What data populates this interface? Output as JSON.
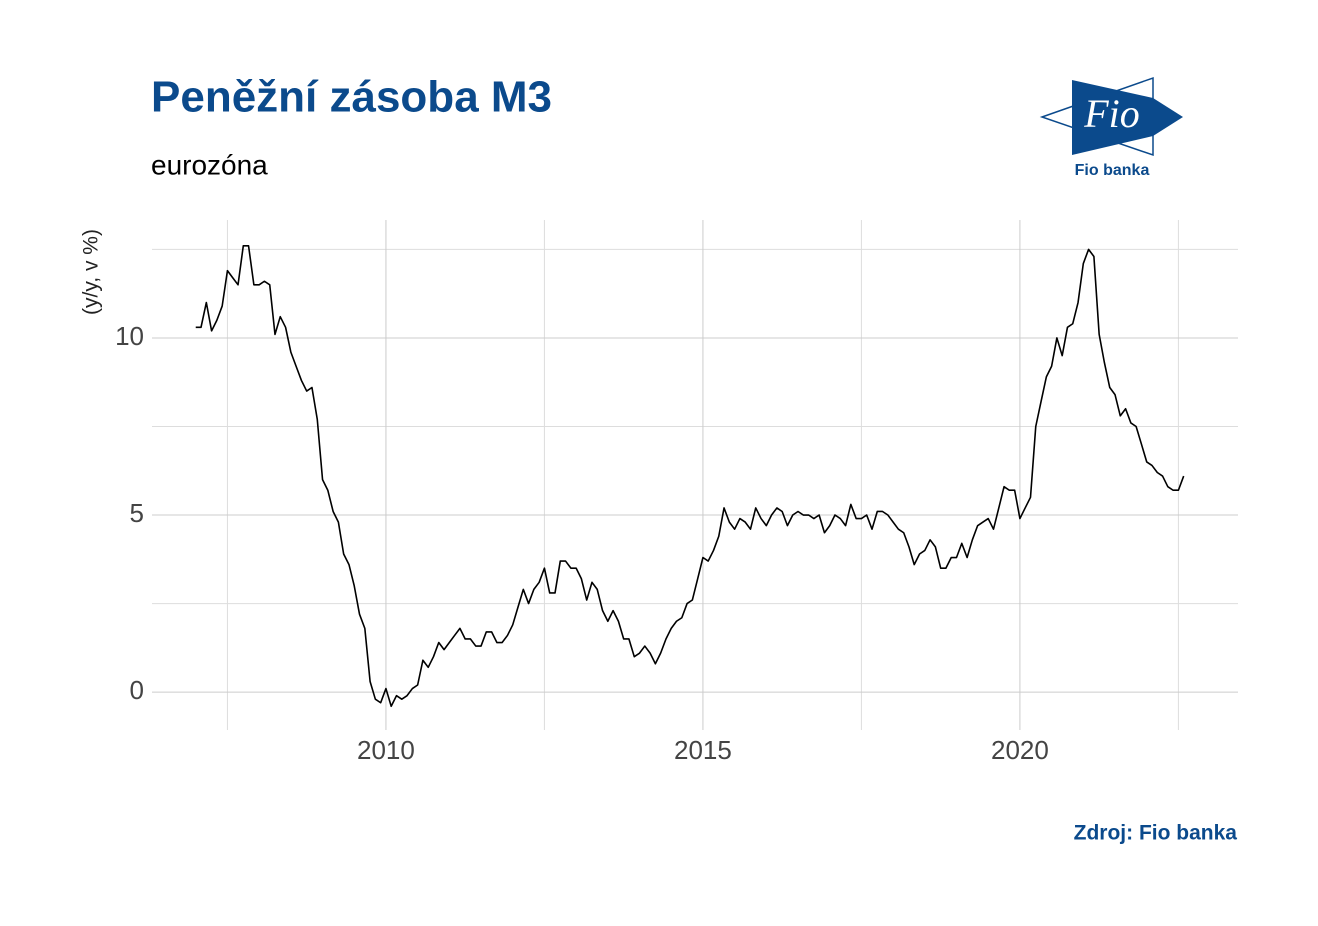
{
  "chart_data": {
    "type": "line",
    "title": "Peněžní zásoba M3",
    "subtitle": "eurozóna",
    "y_label": "(y/y, v %)",
    "source": "Zdroj: Fio banka",
    "logo": {
      "mark": "Fio",
      "name": "Fio banka"
    },
    "grid": true,
    "xlim": [
      2006.31,
      2023.44
    ],
    "ylim": [
      -1.07,
      13.33
    ],
    "xticks": [
      2010,
      2015,
      2020
    ],
    "yticks": [
      0,
      5,
      10
    ],
    "xminorticks": [
      2007.5,
      2012.5,
      2017.5,
      2022.5
    ],
    "yminorticks": [
      2.5,
      7.5,
      12.5
    ],
    "x": [
      2007,
      2007.083,
      2007.167,
      2007.25,
      2007.333,
      2007.417,
      2007.5,
      2007.583,
      2007.667,
      2007.75,
      2007.833,
      2007.917,
      2008,
      2008.083,
      2008.167,
      2008.25,
      2008.333,
      2008.417,
      2008.5,
      2008.583,
      2008.667,
      2008.75,
      2008.833,
      2008.917,
      2009,
      2009.083,
      2009.167,
      2009.25,
      2009.333,
      2009.417,
      2009.5,
      2009.583,
      2009.667,
      2009.75,
      2009.833,
      2009.917,
      2010,
      2010.083,
      2010.167,
      2010.25,
      2010.333,
      2010.417,
      2010.5,
      2010.583,
      2010.667,
      2010.75,
      2010.833,
      2010.917,
      2011,
      2011.083,
      2011.167,
      2011.25,
      2011.333,
      2011.417,
      2011.5,
      2011.583,
      2011.667,
      2011.75,
      2011.833,
      2011.917,
      2012,
      2012.083,
      2012.167,
      2012.25,
      2012.333,
      2012.417,
      2012.5,
      2012.583,
      2012.667,
      2012.75,
      2012.833,
      2012.917,
      2013,
      2013.083,
      2013.167,
      2013.25,
      2013.333,
      2013.417,
      2013.5,
      2013.583,
      2013.667,
      2013.75,
      2013.833,
      2013.917,
      2014,
      2014.083,
      2014.167,
      2014.25,
      2014.333,
      2014.417,
      2014.5,
      2014.583,
      2014.667,
      2014.75,
      2014.833,
      2014.917,
      2015,
      2015.083,
      2015.167,
      2015.25,
      2015.333,
      2015.417,
      2015.5,
      2015.583,
      2015.667,
      2015.75,
      2015.833,
      2015.917,
      2016,
      2016.083,
      2016.167,
      2016.25,
      2016.333,
      2016.417,
      2016.5,
      2016.583,
      2016.667,
      2016.75,
      2016.833,
      2016.917,
      2017,
      2017.083,
      2017.167,
      2017.25,
      2017.333,
      2017.417,
      2017.5,
      2017.583,
      2017.667,
      2017.75,
      2017.833,
      2017.917,
      2018,
      2018.083,
      2018.167,
      2018.25,
      2018.333,
      2018.417,
      2018.5,
      2018.583,
      2018.667,
      2018.75,
      2018.833,
      2018.917,
      2019,
      2019.083,
      2019.167,
      2019.25,
      2019.333,
      2019.417,
      2019.5,
      2019.583,
      2019.667,
      2019.75,
      2019.833,
      2019.917,
      2020,
      2020.083,
      2020.167,
      2020.25,
      2020.333,
      2020.417,
      2020.5,
      2020.583,
      2020.667,
      2020.75,
      2020.833,
      2020.917,
      2021,
      2021.083,
      2021.167,
      2021.25,
      2021.333,
      2021.417,
      2021.5,
      2021.583,
      2021.667,
      2021.75,
      2021.833,
      2021.917,
      2022,
      2022.083,
      2022.167,
      2022.25,
      2022.333,
      2022.417,
      2022.5,
      2022.583
    ],
    "series": [
      {
        "name": "M3",
        "color": "#000000",
        "values": [
          10.3,
          10.3,
          11.0,
          10.2,
          10.5,
          10.9,
          11.9,
          11.7,
          11.5,
          12.6,
          12.6,
          11.5,
          11.5,
          11.6,
          11.5,
          10.1,
          10.6,
          10.3,
          9.6,
          9.2,
          8.8,
          8.5,
          8.6,
          7.7,
          6.0,
          5.7,
          5.1,
          4.8,
          3.9,
          3.6,
          3.0,
          2.2,
          1.8,
          0.3,
          -0.2,
          -0.3,
          0.1,
          -0.4,
          -0.1,
          -0.2,
          -0.1,
          0.1,
          0.2,
          0.9,
          0.7,
          1.0,
          1.4,
          1.2,
          1.4,
          1.6,
          1.8,
          1.5,
          1.5,
          1.3,
          1.3,
          1.7,
          1.7,
          1.4,
          1.4,
          1.6,
          1.9,
          2.4,
          2.9,
          2.5,
          2.9,
          3.1,
          3.5,
          2.8,
          2.8,
          3.7,
          3.7,
          3.5,
          3.5,
          3.2,
          2.6,
          3.1,
          2.9,
          2.3,
          2.0,
          2.3,
          2.0,
          1.5,
          1.5,
          1.0,
          1.1,
          1.3,
          1.1,
          0.8,
          1.1,
          1.5,
          1.8,
          2.0,
          2.1,
          2.5,
          2.6,
          3.2,
          3.8,
          3.7,
          4.0,
          4.4,
          5.2,
          4.8,
          4.6,
          4.9,
          4.8,
          4.6,
          5.2,
          4.9,
          4.7,
          5.0,
          5.2,
          5.1,
          4.7,
          5.0,
          5.1,
          5.0,
          5.0,
          4.9,
          5.0,
          4.5,
          4.7,
          5.0,
          4.9,
          4.7,
          5.3,
          4.9,
          4.9,
          5.0,
          4.6,
          5.1,
          5.1,
          5.0,
          4.8,
          4.6,
          4.5,
          4.1,
          3.6,
          3.9,
          4.0,
          4.3,
          4.1,
          3.5,
          3.5,
          3.8,
          3.8,
          4.2,
          3.8,
          4.3,
          4.7,
          4.8,
          4.9,
          4.6,
          5.2,
          5.8,
          5.7,
          5.7,
          4.9,
          5.2,
          5.5,
          7.5,
          8.2,
          8.9,
          9.2,
          10.0,
          9.5,
          10.3,
          10.4,
          11.0,
          12.1,
          12.5,
          12.3,
          10.1,
          9.3,
          8.6,
          8.4,
          7.8,
          8.0,
          7.6,
          7.5,
          7.0,
          6.5,
          6.4,
          6.2,
          6.1,
          5.8,
          5.7,
          5.7,
          6.1
        ]
      }
    ]
  }
}
